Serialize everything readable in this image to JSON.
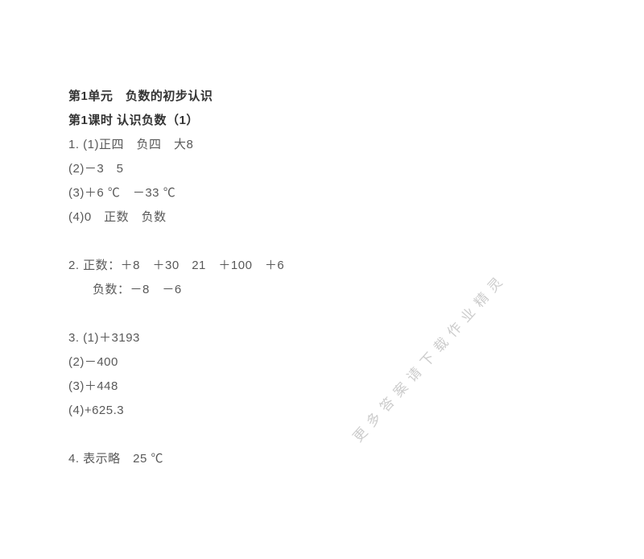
{
  "header": {
    "unit": "第1单元　负数的初步认识",
    "lesson": "第1课时   认识负数（1）"
  },
  "q1": {
    "p1": "1. (1)正四　负四　大8",
    "p2": "(2)－3　5",
    "p3": "(3)＋6 ℃　－33 ℃",
    "p4": "(4)0　正数　负数"
  },
  "q2": {
    "pos": "2. 正数：＋8　＋30　21　＋100　＋6",
    "neg": "负数：－8　－6"
  },
  "q3": {
    "p1": "3. (1)＋3193",
    "p2": "(2)－400",
    "p3": "(3)＋448",
    "p4": "(4)+625.3"
  },
  "q4": {
    "text": "4. 表示略　25 ℃"
  },
  "watermark": "更多答案请下载作业精灵",
  "colors": {
    "text": "#595959",
    "bold_text": "#333333",
    "watermark": "#cccccc",
    "background": "#ffffff"
  },
  "typography": {
    "body_fontsize": 15,
    "line_height": 30,
    "watermark_fontsize": 17,
    "watermark_letter_spacing": 8,
    "watermark_rotation_deg": -48
  }
}
